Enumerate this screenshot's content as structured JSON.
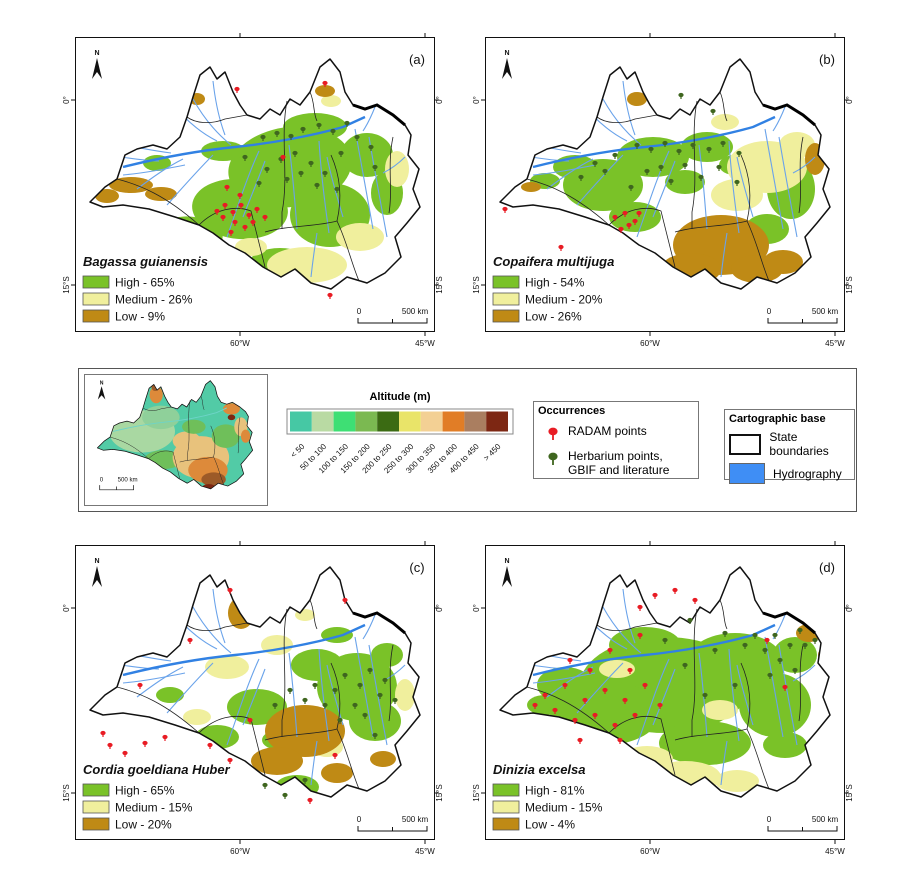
{
  "figure": {
    "north": "N",
    "axis": {
      "lat0": "0°",
      "lat15": "15°S",
      "lon60": "60°W",
      "lon45": "45°W"
    },
    "scalebar": {
      "zero": "0",
      "label": "500 km"
    }
  },
  "colors": {
    "high": "#7ac228",
    "medium": "#f0ef9d",
    "low": "#bf8a15",
    "river": "#6aa3ea",
    "river_main": "#3181e3",
    "radam": "#e81c24",
    "herbarium": "#3f661f",
    "hydrography": "#3f8ef5"
  },
  "panels": [
    {
      "id": "a",
      "letter": "(a)",
      "species": "Bagassa guianensis",
      "legend": [
        {
          "level": "high",
          "label": "High - 65%"
        },
        {
          "level": "medium",
          "label": "Medium - 26%"
        },
        {
          "level": "low",
          "label": "Low - 9%"
        }
      ],
      "patches": [
        [
          "high",
          215,
          130,
          62,
          40,
          -8
        ],
        [
          "high",
          165,
          172,
          48,
          30,
          5
        ],
        [
          "high",
          255,
          178,
          40,
          32,
          0
        ],
        [
          "high",
          118,
          196,
          30,
          16,
          10
        ],
        [
          "high",
          292,
          118,
          26,
          22,
          0
        ],
        [
          "high",
          240,
          90,
          32,
          14,
          0
        ],
        [
          "high",
          148,
          114,
          22,
          10,
          0
        ],
        [
          "high",
          312,
          156,
          16,
          22,
          0
        ],
        [
          "high",
          82,
          126,
          14,
          8,
          0
        ],
        [
          "high",
          205,
          225,
          30,
          14,
          0
        ],
        [
          "medium",
          232,
          228,
          40,
          18,
          0
        ],
        [
          "medium",
          285,
          200,
          24,
          14,
          0
        ],
        [
          "medium",
          196,
          248,
          28,
          11,
          0
        ],
        [
          "medium",
          322,
          132,
          12,
          18,
          0
        ],
        [
          "medium",
          256,
          64,
          10,
          6,
          0
        ],
        [
          "medium",
          176,
          210,
          16,
          9,
          0
        ],
        [
          "low",
          56,
          148,
          22,
          8,
          0
        ],
        [
          "low",
          86,
          157,
          16,
          7,
          0
        ],
        [
          "low",
          32,
          159,
          12,
          7,
          0
        ],
        [
          "low",
          122,
          62,
          8,
          6,
          0
        ],
        [
          "low",
          250,
          54,
          10,
          6,
          0
        ]
      ],
      "radam_points": [
        [
          150,
          168
        ],
        [
          158,
          175
        ],
        [
          166,
          168
        ],
        [
          174,
          178
        ],
        [
          160,
          185
        ],
        [
          148,
          180
        ],
        [
          170,
          190
        ],
        [
          182,
          172
        ],
        [
          156,
          195
        ],
        [
          142,
          174
        ],
        [
          178,
          185
        ],
        [
          190,
          180
        ],
        [
          165,
          158
        ],
        [
          152,
          150
        ],
        [
          255,
          258
        ],
        [
          162,
          52
        ],
        [
          250,
          46
        ],
        [
          208,
          120
        ]
      ],
      "herbarium_points": [
        [
          188,
          100
        ],
        [
          202,
          96
        ],
        [
          216,
          99
        ],
        [
          228,
          92
        ],
        [
          244,
          88
        ],
        [
          258,
          94
        ],
        [
          272,
          86
        ],
        [
          206,
          122
        ],
        [
          220,
          116
        ],
        [
          236,
          126
        ],
        [
          192,
          132
        ],
        [
          212,
          142
        ],
        [
          250,
          136
        ],
        [
          282,
          100
        ],
        [
          296,
          110
        ],
        [
          266,
          116
        ],
        [
          226,
          136
        ],
        [
          242,
          148
        ],
        [
          262,
          152
        ],
        [
          300,
          130
        ],
        [
          184,
          146
        ],
        [
          170,
          120
        ]
      ]
    },
    {
      "id": "b",
      "letter": "(b)",
      "species": "Copaifera multijuga",
      "legend": [
        {
          "level": "high",
          "label": "High - 54%"
        },
        {
          "level": "medium",
          "label": "Medium - 20%"
        },
        {
          "level": "low",
          "label": "Low - 26%"
        }
      ],
      "patches": [
        [
          "high",
          118,
          148,
          40,
          26,
          0
        ],
        [
          "high",
          168,
          120,
          36,
          20,
          0
        ],
        [
          "high",
          90,
          130,
          22,
          12,
          0
        ],
        [
          "high",
          222,
          110,
          26,
          15,
          0
        ],
        [
          "high",
          306,
          152,
          24,
          30,
          0
        ],
        [
          "high",
          282,
          192,
          22,
          15,
          0
        ],
        [
          "high",
          150,
          180,
          26,
          15,
          0
        ],
        [
          "high",
          60,
          144,
          15,
          8,
          0
        ],
        [
          "high",
          250,
          128,
          16,
          10,
          0
        ],
        [
          "high",
          200,
          145,
          20,
          12,
          0
        ],
        [
          "medium",
          282,
          130,
          40,
          26,
          0
        ],
        [
          "medium",
          252,
          158,
          26,
          16,
          0
        ],
        [
          "medium",
          312,
          108,
          18,
          13,
          0
        ],
        [
          "medium",
          240,
          85,
          14,
          8,
          0
        ],
        [
          "low",
          236,
          208,
          48,
          30,
          0
        ],
        [
          "low",
          206,
          232,
          30,
          16,
          0
        ],
        [
          "low",
          272,
          232,
          26,
          14,
          0
        ],
        [
          "low",
          152,
          62,
          10,
          7,
          0
        ],
        [
          "low",
          330,
          122,
          10,
          16,
          0
        ],
        [
          "low",
          46,
          150,
          10,
          5,
          0
        ],
        [
          "low",
          298,
          225,
          20,
          12,
          0
        ]
      ],
      "radam_points": [
        [
          130,
          180
        ],
        [
          140,
          176
        ],
        [
          150,
          184
        ],
        [
          136,
          192
        ],
        [
          154,
          176
        ],
        [
          20,
          172
        ],
        [
          76,
          210
        ],
        [
          144,
          188
        ]
      ],
      "herbarium_points": [
        [
          152,
          108
        ],
        [
          166,
          112
        ],
        [
          180,
          106
        ],
        [
          194,
          114
        ],
        [
          208,
          108
        ],
        [
          224,
          112
        ],
        [
          238,
          106
        ],
        [
          130,
          118
        ],
        [
          120,
          134
        ],
        [
          176,
          130
        ],
        [
          200,
          128
        ],
        [
          216,
          140
        ],
        [
          234,
          130
        ],
        [
          96,
          140
        ],
        [
          110,
          126
        ],
        [
          254,
          116
        ],
        [
          186,
          144
        ],
        [
          162,
          134
        ],
        [
          196,
          58
        ],
        [
          228,
          74
        ],
        [
          146,
          150
        ],
        [
          252,
          145
        ]
      ]
    },
    {
      "id": "c",
      "letter": "(c)",
      "species": "Cordia goeldiana Huber",
      "legend": [
        {
          "level": "high",
          "label": "High - 65%"
        },
        {
          "level": "medium",
          "label": "Medium - 15%"
        },
        {
          "level": "low",
          "label": "Low - 20%"
        }
      ],
      "patches": [
        [
          "high",
          282,
          142,
          40,
          34,
          0
        ],
        [
          "high",
          300,
          176,
          26,
          20,
          0
        ],
        [
          "high",
          242,
          120,
          26,
          16,
          0
        ],
        [
          "high",
          182,
          162,
          30,
          18,
          0
        ],
        [
          "high",
          142,
          192,
          22,
          12,
          0
        ],
        [
          "high",
          312,
          110,
          16,
          12,
          0
        ],
        [
          "high",
          222,
          242,
          22,
          12,
          0
        ],
        [
          "high",
          262,
          90,
          16,
          8,
          0
        ],
        [
          "high",
          95,
          150,
          14,
          8,
          0
        ],
        [
          "high",
          205,
          195,
          18,
          10,
          0
        ],
        [
          "medium",
          152,
          122,
          22,
          12,
          0
        ],
        [
          "medium",
          202,
          100,
          16,
          10,
          0
        ],
        [
          "medium",
          252,
          202,
          16,
          10,
          0
        ],
        [
          "medium",
          122,
          172,
          14,
          8,
          0
        ],
        [
          "medium",
          330,
          150,
          10,
          16,
          0
        ],
        [
          "medium",
          230,
          70,
          10,
          6,
          0
        ],
        [
          "low",
          230,
          186,
          40,
          26,
          0
        ],
        [
          "low",
          202,
          216,
          26,
          14,
          0
        ],
        [
          "low",
          166,
          68,
          13,
          16,
          0
        ],
        [
          "low",
          262,
          228,
          16,
          10,
          0
        ],
        [
          "low",
          308,
          214,
          13,
          8,
          0
        ]
      ],
      "radam_points": [
        [
          155,
          45
        ],
        [
          270,
          55
        ],
        [
          65,
          140
        ],
        [
          115,
          95
        ],
        [
          35,
          200
        ],
        [
          50,
          208
        ],
        [
          70,
          198
        ],
        [
          135,
          200
        ],
        [
          175,
          175
        ],
        [
          155,
          215
        ],
        [
          235,
          255
        ],
        [
          260,
          210
        ],
        [
          28,
          188
        ],
        [
          90,
          192
        ]
      ],
      "herbarium_points": [
        [
          270,
          130
        ],
        [
          285,
          140
        ],
        [
          295,
          125
        ],
        [
          305,
          150
        ],
        [
          280,
          160
        ],
        [
          260,
          145
        ],
        [
          290,
          170
        ],
        [
          310,
          135
        ],
        [
          250,
          160
        ],
        [
          265,
          175
        ],
        [
          300,
          190
        ],
        [
          240,
          140
        ],
        [
          230,
          155
        ],
        [
          320,
          155
        ],
        [
          190,
          240
        ],
        [
          210,
          250
        ],
        [
          230,
          235
        ],
        [
          215,
          145
        ],
        [
          200,
          160
        ]
      ]
    },
    {
      "id": "d",
      "letter": "(d)",
      "species": "Dinizia excelsa",
      "legend": [
        {
          "level": "high",
          "label": "High - 81%"
        },
        {
          "level": "medium",
          "label": "Medium - 15%"
        },
        {
          "level": "low",
          "label": "Low - 4%"
        }
      ],
      "patches": [
        [
          "high",
          180,
          140,
          85,
          48,
          0
        ],
        [
          "high",
          120,
          168,
          55,
          32,
          0
        ],
        [
          "high",
          250,
          120,
          50,
          32,
          0
        ],
        [
          "high",
          290,
          160,
          36,
          32,
          0
        ],
        [
          "high",
          80,
          140,
          28,
          18,
          0
        ],
        [
          "high",
          220,
          198,
          46,
          22,
          0
        ],
        [
          "high",
          160,
          100,
          36,
          18,
          0
        ],
        [
          "high",
          310,
          110,
          22,
          18,
          0
        ],
        [
          "high",
          60,
          160,
          18,
          10,
          0
        ],
        [
          "high",
          300,
          200,
          22,
          13,
          0
        ],
        [
          "high",
          140,
          220,
          25,
          12,
          0
        ],
        [
          "medium",
          200,
          232,
          36,
          16,
          0
        ],
        [
          "medium",
          162,
          214,
          26,
          13,
          0
        ],
        [
          "medium",
          252,
          236,
          22,
          11,
          0
        ],
        [
          "medium",
          132,
          124,
          18,
          9,
          0
        ],
        [
          "medium",
          235,
          165,
          18,
          10,
          0
        ],
        [
          "low",
          324,
          88,
          13,
          9,
          0
        ],
        [
          "low",
          340,
          110,
          7,
          7,
          0
        ]
      ],
      "radam_points": [
        [
          60,
          150
        ],
        [
          80,
          140
        ],
        [
          100,
          155
        ],
        [
          120,
          145
        ],
        [
          140,
          155
        ],
        [
          110,
          170
        ],
        [
          90,
          175
        ],
        [
          130,
          180
        ],
        [
          150,
          170
        ],
        [
          70,
          165
        ],
        [
          160,
          140
        ],
        [
          145,
          125
        ],
        [
          50,
          160
        ],
        [
          175,
          160
        ],
        [
          105,
          125
        ],
        [
          125,
          105
        ],
        [
          155,
          90
        ],
        [
          85,
          115
        ],
        [
          170,
          50
        ],
        [
          190,
          45
        ],
        [
          155,
          62
        ],
        [
          210,
          55
        ],
        [
          282,
          95
        ],
        [
          300,
          142
        ],
        [
          135,
          195
        ],
        [
          95,
          195
        ]
      ],
      "herbarium_points": [
        [
          290,
          90
        ],
        [
          305,
          100
        ],
        [
          315,
          85
        ],
        [
          280,
          105
        ],
        [
          295,
          115
        ],
        [
          320,
          100
        ],
        [
          270,
          90
        ],
        [
          310,
          125
        ],
        [
          330,
          95
        ],
        [
          285,
          130
        ],
        [
          200,
          120
        ],
        [
          230,
          105
        ],
        [
          180,
          95
        ],
        [
          250,
          140
        ],
        [
          220,
          150
        ],
        [
          260,
          100
        ],
        [
          240,
          88
        ],
        [
          205,
          75
        ]
      ]
    }
  ],
  "legend_box": {
    "altitude": {
      "title": "Altitude (m)",
      "classes": [
        {
          "label": "< 50",
          "color": "#46c8a4"
        },
        {
          "label": "50 to 100",
          "color": "#b9daa3"
        },
        {
          "label": "100 to 150",
          "color": "#3edf74"
        },
        {
          "label": "150 to 200",
          "color": "#7bb951"
        },
        {
          "label": "200 to 250",
          "color": "#3b6b13"
        },
        {
          "label": "250 to 300",
          "color": "#e9e469"
        },
        {
          "label": "300 to 350",
          "color": "#f3d094"
        },
        {
          "label": "350 to 400",
          "color": "#e17d26"
        },
        {
          "label": "400 to 450",
          "color": "#aa7e60"
        },
        {
          "label": "> 450",
          "color": "#7d2713"
        }
      ]
    },
    "occurrences": {
      "title": "Occurrences",
      "items": [
        {
          "label": "RADAM points",
          "color": "#e81c24"
        },
        {
          "label": "Herbarium points, GBIF and literature",
          "color": "#3f661f"
        }
      ]
    },
    "cartographic": {
      "title": "Cartographic base",
      "items": [
        {
          "label": "State boundaries",
          "type": "boundary"
        },
        {
          "label": "Hydrography",
          "type": "water",
          "color": "#3f8ef5"
        }
      ]
    },
    "inset": {
      "north": "N",
      "scale_zero": "0",
      "scale_label": "500 km"
    }
  }
}
